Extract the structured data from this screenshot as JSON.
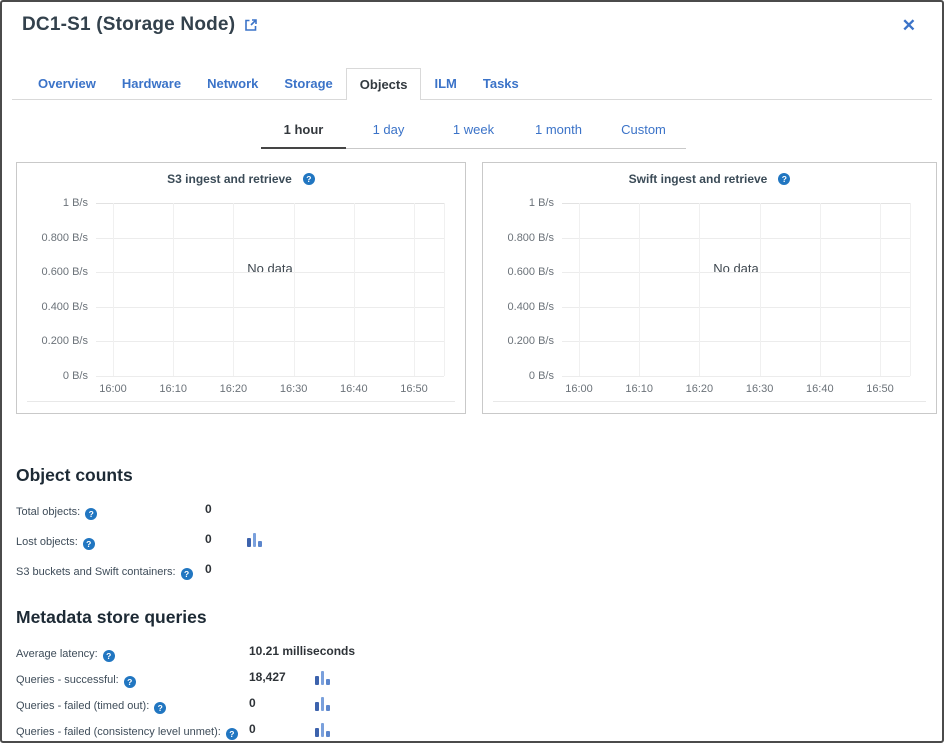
{
  "header": {
    "title": "DC1-S1 (Storage Node)"
  },
  "icons": {
    "help": "?",
    "close": "✕"
  },
  "colors": {
    "link_blue": "#3b73c8",
    "help_icon_blue": "#2176c1",
    "active_tab_text": "#333a40",
    "heading_dark": "#1d2a35",
    "border_gray": "#c9c9c9"
  },
  "tabs": {
    "items": [
      "Overview",
      "Hardware",
      "Network",
      "Storage",
      "Objects",
      "ILM",
      "Tasks"
    ],
    "active": "Objects"
  },
  "time_ranges": {
    "items": [
      "1 hour",
      "1 day",
      "1 week",
      "1 month",
      "Custom"
    ],
    "active": "1 hour"
  },
  "charts": [
    {
      "title": "S3 ingest and retrieve",
      "no_data_label": "No data",
      "y_ticks": [
        "1 B/s",
        "0.800 B/s",
        "0.600 B/s",
        "0.400 B/s",
        "0.200 B/s",
        "0 B/s"
      ],
      "x_ticks": [
        "16:00",
        "16:10",
        "16:20",
        "16:30",
        "16:40",
        "16:50"
      ]
    },
    {
      "title": "Swift ingest and retrieve",
      "no_data_label": "No data",
      "y_ticks": [
        "1 B/s",
        "0.800 B/s",
        "0.600 B/s",
        "0.400 B/s",
        "0.200 B/s",
        "0 B/s"
      ],
      "x_ticks": [
        "16:00",
        "16:10",
        "16:20",
        "16:30",
        "16:40",
        "16:50"
      ]
    }
  ],
  "chart_data": [
    {
      "type": "line",
      "title": "S3 ingest and retrieve",
      "x": [],
      "series": [],
      "note": "No data",
      "ylabel": "B/s",
      "ylim_labels": [
        "0 B/s",
        "1 B/s"
      ],
      "x_range": [
        "16:00",
        "16:50"
      ],
      "grid": true
    },
    {
      "type": "line",
      "title": "Swift ingest and retrieve",
      "x": [],
      "series": [],
      "note": "No data",
      "ylabel": "B/s",
      "ylim_labels": [
        "0 B/s",
        "1 B/s"
      ],
      "x_range": [
        "16:00",
        "16:50"
      ],
      "grid": true
    }
  ],
  "object_counts": {
    "heading": "Object counts",
    "rows": [
      {
        "label": "Total objects:",
        "value": "0",
        "has_sparkline": false
      },
      {
        "label": "Lost objects:",
        "value": "0",
        "has_sparkline": true
      },
      {
        "label": "S3 buckets and Swift containers:",
        "value": "0",
        "has_sparkline": false
      }
    ]
  },
  "metadata_queries": {
    "heading": "Metadata store queries",
    "rows": [
      {
        "label": "Average latency:",
        "value": "10.21 milliseconds",
        "has_sparkline": false
      },
      {
        "label": "Queries - successful:",
        "value": "18,427",
        "has_sparkline": true
      },
      {
        "label": "Queries - failed (timed out):",
        "value": "0",
        "has_sparkline": true
      },
      {
        "label": "Queries - failed (consistency level unmet):",
        "value": "0",
        "has_sparkline": true
      }
    ]
  }
}
